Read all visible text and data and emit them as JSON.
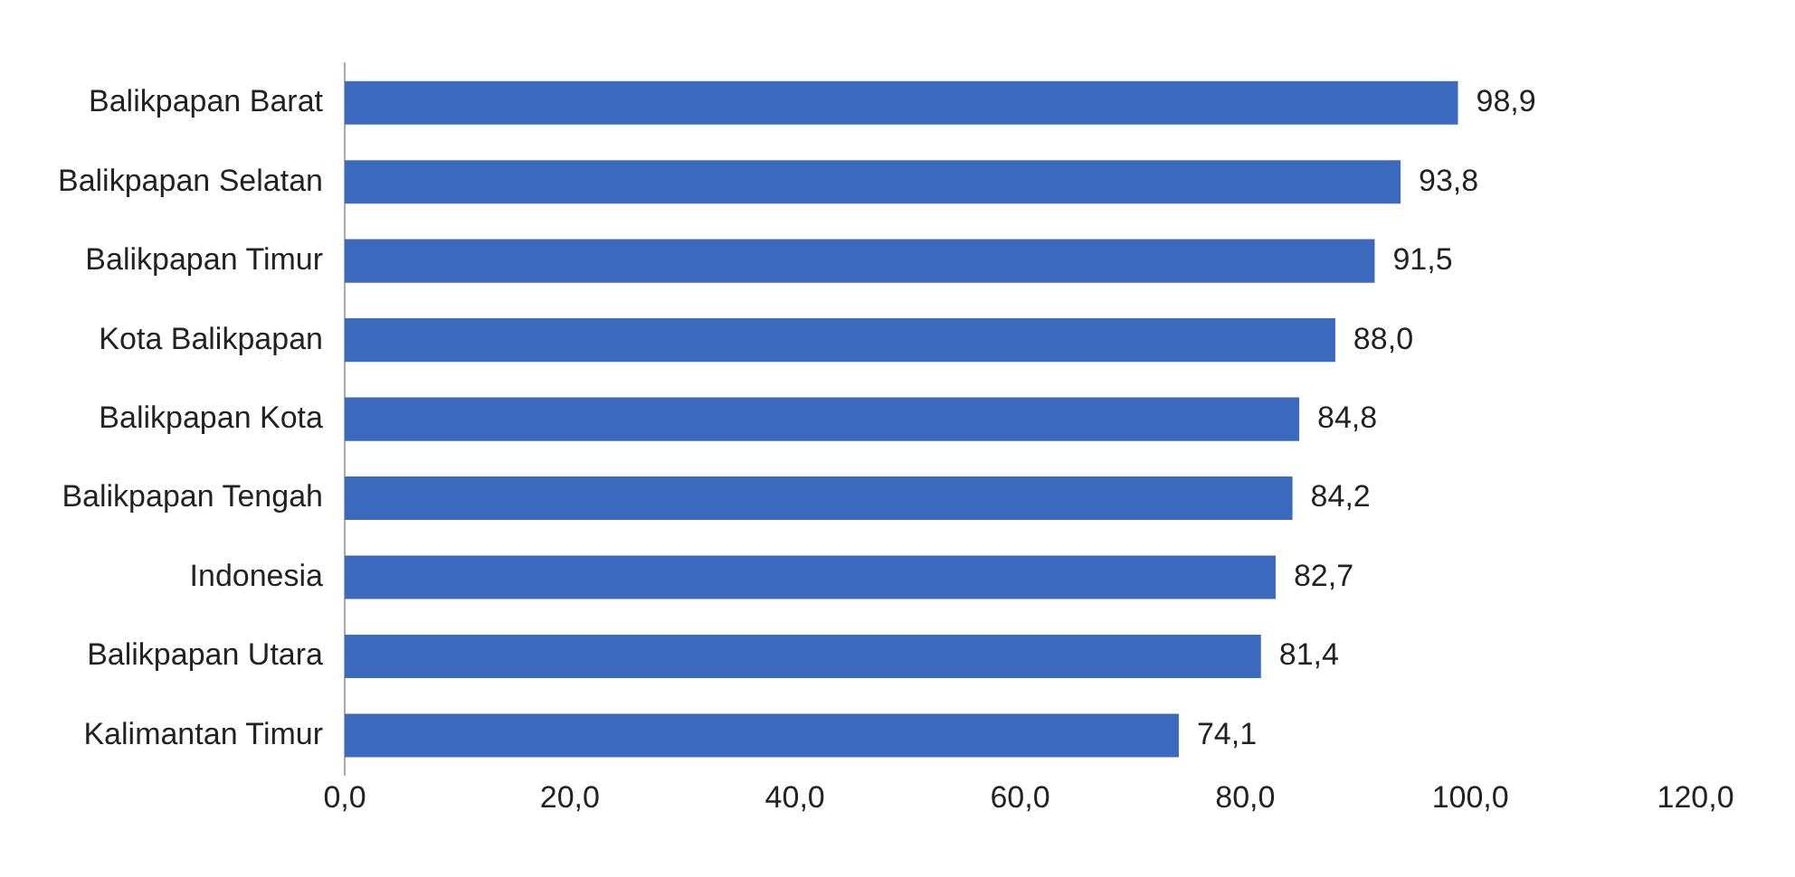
{
  "chart_data": {
    "type": "bar",
    "orientation": "horizontal",
    "categories": [
      "Balikpapan Barat",
      "Balikpapan Selatan",
      "Balikpapan Timur",
      "Kota Balikpapan",
      "Balikpapan Kota",
      "Balikpapan Tengah",
      "Indonesia",
      "Balikpapan Utara",
      "Kalimantan Timur"
    ],
    "values": [
      98.9,
      93.8,
      91.5,
      88.0,
      84.8,
      84.2,
      82.7,
      81.4,
      74.1
    ],
    "color": "#3b69bd",
    "value_labels": [
      "98,9",
      "93,8",
      "91,5",
      "88,0",
      "84,8",
      "84,2",
      "82,7",
      "81,4",
      "74,1"
    ],
    "xlim": [
      0,
      120
    ],
    "xticks": [
      {
        "value": 0,
        "label": "0,0"
      },
      {
        "value": 20,
        "label": "20,0"
      },
      {
        "value": 40,
        "label": "40,0"
      },
      {
        "value": 60,
        "label": "60,0"
      },
      {
        "value": 80,
        "label": "80,0"
      },
      {
        "value": 100,
        "label": "100,0"
      },
      {
        "value": 120,
        "label": "120,0"
      }
    ],
    "grid": false,
    "legend": false
  }
}
